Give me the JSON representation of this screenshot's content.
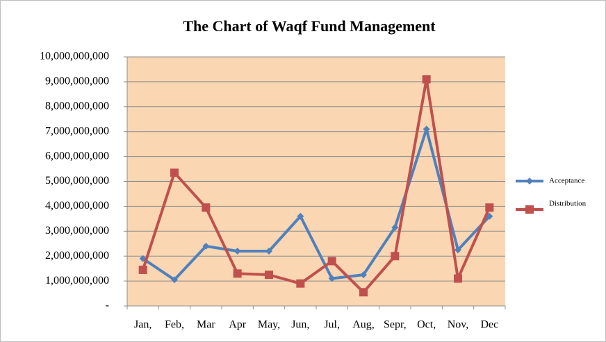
{
  "chart_data": {
    "type": "line",
    "title": "The Chart  of Waqf Fund  Management",
    "categories": [
      "Jan,",
      "Feb,",
      "Mar",
      "Apr",
      "May,",
      "Jun,",
      "Jul,",
      "Aug,",
      "Sepr,",
      "Oct,",
      "Nov,",
      "Dec"
    ],
    "series": [
      {
        "name": "Acceptance",
        "color": "#4f81bd",
        "marker": "diamond",
        "values": [
          1900000000,
          1050000000,
          2400000000,
          2200000000,
          2200000000,
          3600000000,
          1100000000,
          1250000000,
          3150000000,
          7100000000,
          2250000000,
          3600000000
        ]
      },
      {
        "name": "Distribution",
        "color": "#c0504d",
        "marker": "square",
        "values": [
          1450000000,
          5350000000,
          3950000000,
          1300000000,
          1250000000,
          900000000,
          1800000000,
          550000000,
          2000000000,
          9100000000,
          1100000000,
          3950000000
        ]
      }
    ],
    "ylim": [
      0,
      10000000000
    ],
    "yticks": [
      {
        "value": 0,
        "label": "-"
      },
      {
        "value": 1000000000,
        "label": "1,000,000,000"
      },
      {
        "value": 2000000000,
        "label": "2,000,000,000"
      },
      {
        "value": 3000000000,
        "label": "3,000,000,000"
      },
      {
        "value": 4000000000,
        "label": "4,000,000,000"
      },
      {
        "value": 5000000000,
        "label": "5,000,000,000"
      },
      {
        "value": 6000000000,
        "label": "6,000,000,000"
      },
      {
        "value": 7000000000,
        "label": "7,000,000,000"
      },
      {
        "value": 8000000000,
        "label": "8,000,000,000"
      },
      {
        "value": 9000000000,
        "label": "9,000,000,000"
      },
      {
        "value": 10000000000,
        "label": "10,000,000,000"
      }
    ],
    "grid": true,
    "legend": "right",
    "plot_background": "#fad6b2"
  }
}
